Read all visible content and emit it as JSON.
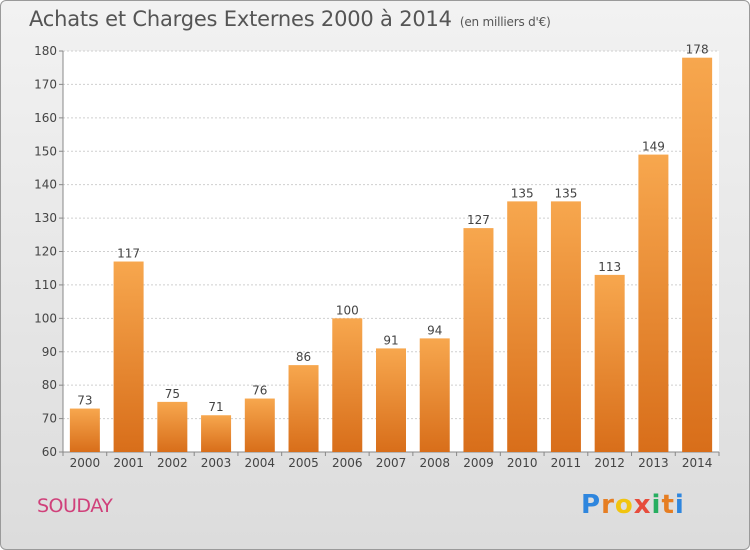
{
  "title": "Achats et Charges Externes 2000 à 2014",
  "subtitle": "(en milliers d'€)",
  "commune": "SOUDAY",
  "logo": {
    "letters": [
      "P",
      "r",
      "o",
      "x",
      "i",
      "t",
      "i"
    ],
    "colors": [
      "#2e86de",
      "#e67e22",
      "#f1c40f",
      "#e74c3c",
      "#27ae60",
      "#e67e22",
      "#2e86de"
    ]
  },
  "colors": {
    "bar_top": "#f7a74e",
    "bar_bottom": "#d86e1a",
    "commune": "#d0407a"
  },
  "chart_data": {
    "type": "bar",
    "categories": [
      "2000",
      "2001",
      "2002",
      "2003",
      "2004",
      "2005",
      "2006",
      "2007",
      "2008",
      "2009",
      "2010",
      "2011",
      "2012",
      "2013",
      "2014"
    ],
    "values": [
      73,
      117,
      75,
      71,
      76,
      86,
      100,
      91,
      94,
      127,
      135,
      135,
      113,
      149,
      178
    ],
    "value_labels": [
      "73",
      "117",
      "75",
      "71",
      "76",
      "86",
      "100",
      "91",
      "94",
      "127",
      "135",
      "135",
      "113",
      "149",
      "178"
    ],
    "ylim": [
      60,
      180
    ],
    "yticks": [
      60,
      70,
      80,
      90,
      100,
      110,
      120,
      130,
      140,
      150,
      160,
      170,
      180
    ],
    "grid": true
  }
}
